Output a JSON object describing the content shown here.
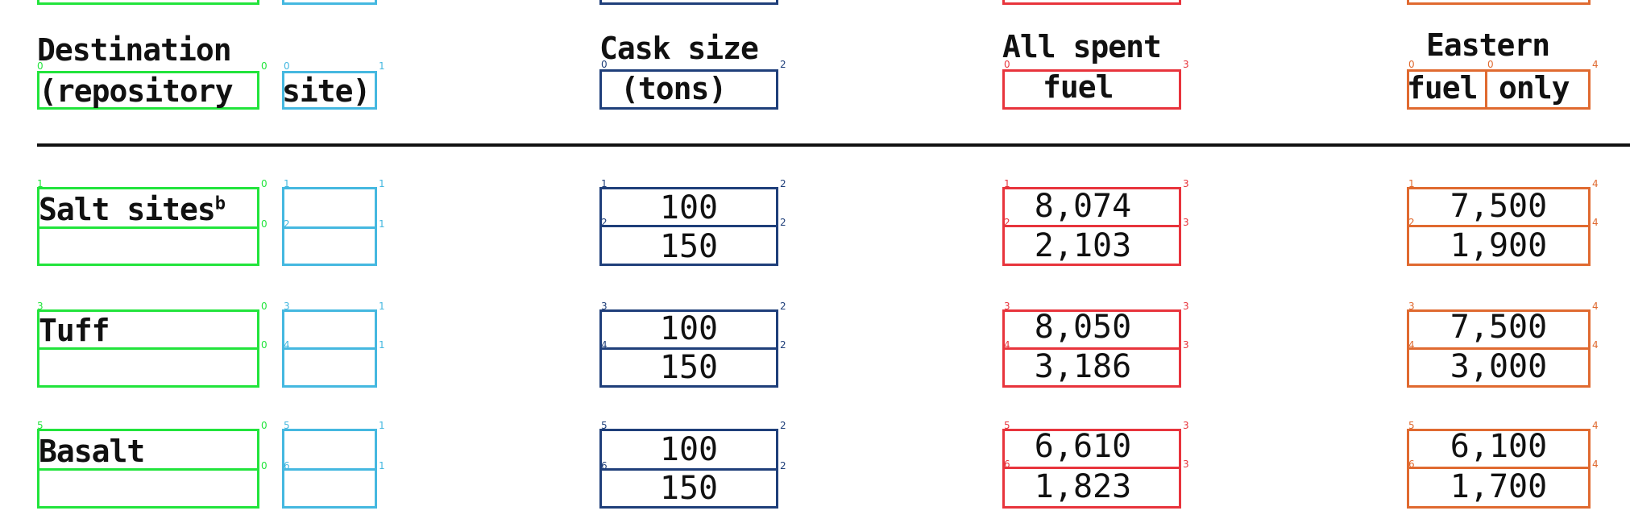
{
  "header": {
    "destination_line1": "Destination",
    "destination_line2": "(repository",
    "destination_site": "site)",
    "cask_line1": "Cask size",
    "cask_line2": "(tons)",
    "all_line1": "All spent",
    "all_line2": "fuel",
    "eastern_line1": "Eastern",
    "eastern_fuel": "fuel",
    "eastern_only": "only"
  },
  "rows": [
    {
      "site": "Salt sites",
      "footnote": "b",
      "casks": [
        "100",
        "150"
      ],
      "all": [
        "8,074",
        "2,103"
      ],
      "eastern": [
        "7,500",
        "1,900"
      ]
    },
    {
      "site": "Tuff",
      "footnote": "",
      "casks": [
        "100",
        "150"
      ],
      "all": [
        "8,050",
        "3,186"
      ],
      "eastern": [
        "7,500",
        "3,000"
      ]
    },
    {
      "site": "Basalt",
      "footnote": "",
      "casks": [
        "100",
        "150"
      ],
      "all": [
        "6,610",
        "1,823"
      ],
      "eastern": [
        "6,100",
        "1,700"
      ]
    }
  ],
  "box_labels": {
    "z": "0",
    "one": "1",
    "two": "2",
    "three": "3",
    "four": "4",
    "five": "5",
    "six": "6"
  },
  "colors": {
    "green": "#22e43c",
    "cyan": "#45b8e0",
    "navy": "#1f3f7a",
    "red": "#e8343c",
    "orange": "#e06a30"
  }
}
